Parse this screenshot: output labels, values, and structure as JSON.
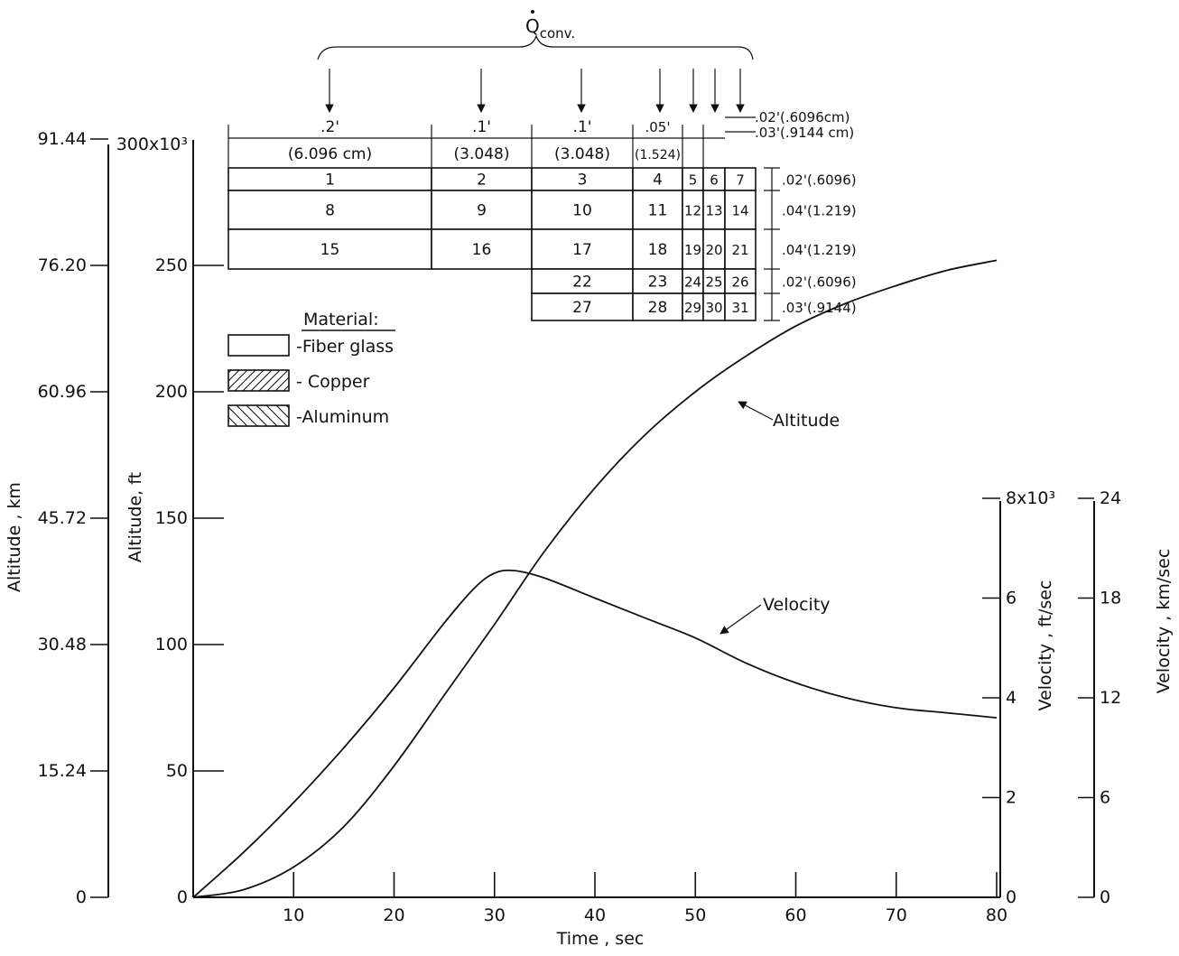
{
  "chart_data": {
    "type": "line",
    "xlabel": "Time , sec",
    "xlim": [
      0,
      80
    ],
    "x_ticks": [
      "10",
      "20",
      "30",
      "40",
      "50",
      "60",
      "70",
      "80"
    ],
    "axes": {
      "alt_km": {
        "label": "Altitude , km",
        "ticks": [
          {
            "v": 0,
            "t": "0"
          },
          {
            "v": 15.24,
            "t": "15.24"
          },
          {
            "v": 30.48,
            "t": "30.48"
          },
          {
            "v": 45.72,
            "t": "45.72"
          },
          {
            "v": 60.96,
            "t": "60.96"
          },
          {
            "v": 76.2,
            "t": "76.20"
          },
          {
            "v": 91.44,
            "t": "91.44"
          }
        ]
      },
      "alt_ft": {
        "label": "Altitude, ft",
        "multiplier": "300x10³",
        "ticks": [
          {
            "v": 0,
            "t": "0"
          },
          {
            "v": 50,
            "t": "50"
          },
          {
            "v": 100,
            "t": "100"
          },
          {
            "v": 150,
            "t": "150"
          },
          {
            "v": 200,
            "t": "200"
          },
          {
            "v": 250,
            "t": "250"
          }
        ]
      },
      "vel_fps": {
        "label": "Velocity , ft/sec",
        "ticks": [
          {
            "v": 0,
            "t": "0"
          },
          {
            "v": 2,
            "t": "2"
          },
          {
            "v": 4,
            "t": "4"
          },
          {
            "v": 6,
            "t": "6"
          },
          {
            "v": 8,
            "t": "8x10³"
          }
        ]
      },
      "vel_kms": {
        "label": "Velocity , km/sec",
        "ticks": [
          {
            "v": 0,
            "t": "0"
          },
          {
            "v": 6,
            "t": "6"
          },
          {
            "v": 12,
            "t": "12"
          },
          {
            "v": 18,
            "t": "18"
          },
          {
            "v": 24,
            "t": "24"
          }
        ]
      }
    },
    "series": [
      {
        "name": "Altitude",
        "unit": "ft x 10^3",
        "x": [
          0,
          5,
          10,
          15,
          20,
          25,
          30,
          35,
          40,
          45,
          50,
          55,
          60,
          65,
          70,
          75,
          80
        ],
        "y": [
          0,
          3,
          12,
          28,
          52,
          80,
          108,
          137,
          162,
          183,
          200,
          214,
          226,
          235,
          242,
          248,
          252
        ]
      },
      {
        "name": "Velocity",
        "unit": "ft/sec x 10^3",
        "x": [
          0,
          5,
          10,
          15,
          20,
          25,
          28,
          30,
          32,
          35,
          40,
          45,
          50,
          55,
          60,
          65,
          70,
          75,
          80
        ],
        "y": [
          0,
          0.9,
          1.9,
          3.0,
          4.2,
          5.5,
          6.2,
          6.5,
          6.55,
          6.4,
          6.0,
          5.6,
          5.2,
          4.7,
          4.3,
          4.0,
          3.8,
          3.7,
          3.6
        ]
      }
    ]
  },
  "diagram": {
    "q_label": "Q",
    "q_sub": "conv.",
    "top_dims": [
      {
        "ft": ".2'",
        "cm": "(6.096 cm)"
      },
      {
        "ft": ".1'",
        "cm": "(3.048)"
      },
      {
        "ft": ".1'",
        "cm": "(3.048)"
      },
      {
        "ft": ".05'",
        "cm": "(1.524)"
      }
    ],
    "small_dims": [
      ".02'(.6096cm)",
      ".03'(.9144 cm)"
    ],
    "row_dims": [
      ".02'(.6096)",
      ".04'(1.219)",
      ".04'(1.219)",
      ".02'(.6096)",
      ".03'(.9144)"
    ],
    "cells": [
      [
        "1",
        "2",
        "3",
        "4",
        "5",
        "6",
        "7"
      ],
      [
        "8",
        "9",
        "10",
        "11",
        "12",
        "13",
        "14"
      ],
      [
        "15",
        "16",
        "17",
        "18",
        "19",
        "20",
        "21"
      ],
      [
        "22",
        "23",
        "24",
        "25",
        "26"
      ],
      [
        "27",
        "28",
        "29",
        "30",
        "31"
      ]
    ]
  },
  "legend": {
    "title": "Material:",
    "items": [
      {
        "name": "fiber",
        "label": "-Fiber glass"
      },
      {
        "name": "copper",
        "label": "- Copper"
      },
      {
        "name": "aluminum",
        "label": "-Aluminum"
      }
    ]
  },
  "curve_labels": {
    "altitude": "Altitude",
    "velocity": "Velocity"
  }
}
